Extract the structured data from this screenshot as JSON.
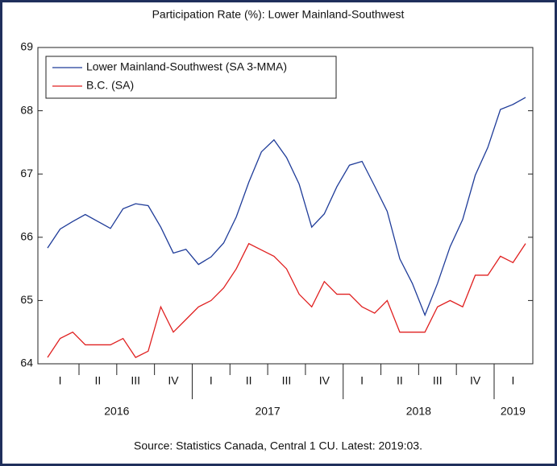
{
  "chart_data": {
    "type": "line",
    "title": "Participation Rate (%): Lower Mainland-Southwest",
    "source": "Source: Statistics Canada, Central 1 CU. Latest: 2019:03.",
    "categories": [
      null,
      "I",
      null,
      null,
      "II",
      null,
      null,
      "III",
      null,
      null,
      "IV",
      null,
      null,
      "I",
      null,
      null,
      "II",
      null,
      null,
      "III",
      null,
      null,
      "IV",
      null,
      null,
      "I",
      null,
      null,
      "II",
      null,
      null,
      "III",
      null,
      null,
      "IV",
      null,
      null,
      "I",
      null
    ],
    "years": [
      "2016",
      "2017",
      "2018",
      "2019"
    ],
    "series": [
      {
        "name": "Lower Mainland-Southwest (SA 3-MMA)",
        "color": "#1f3c99",
        "values": [
          65.83,
          66.13,
          66.25,
          66.36,
          66.25,
          66.14,
          66.45,
          66.53,
          66.5,
          66.16,
          65.75,
          65.81,
          65.57,
          65.69,
          65.91,
          66.32,
          66.87,
          67.35,
          67.54,
          67.26,
          66.84,
          66.16,
          66.37,
          66.8,
          67.14,
          67.2,
          66.81,
          66.41,
          65.66,
          65.27,
          64.77,
          65.27,
          65.85,
          66.28,
          66.98,
          67.42,
          68.02,
          68.1,
          68.21
        ]
      },
      {
        "name": "B.C. (SA)",
        "color": "#e02020",
        "values": [
          64.1,
          64.4,
          64.5,
          64.3,
          64.3,
          64.3,
          64.4,
          64.1,
          64.2,
          64.9,
          64.5,
          64.7,
          64.9,
          65.0,
          65.2,
          65.5,
          65.9,
          65.8,
          65.7,
          65.5,
          65.1,
          64.9,
          65.3,
          65.1,
          65.1,
          64.9,
          64.8,
          65.0,
          64.5,
          64.5,
          64.5,
          64.9,
          65.0,
          64.9,
          65.4,
          65.4,
          65.7,
          65.6,
          65.9
        ]
      }
    ],
    "ylim": [
      64,
      69
    ],
    "yticks": [
      64,
      65,
      66,
      67,
      68,
      69
    ],
    "grid": false,
    "legend": "upper left"
  }
}
